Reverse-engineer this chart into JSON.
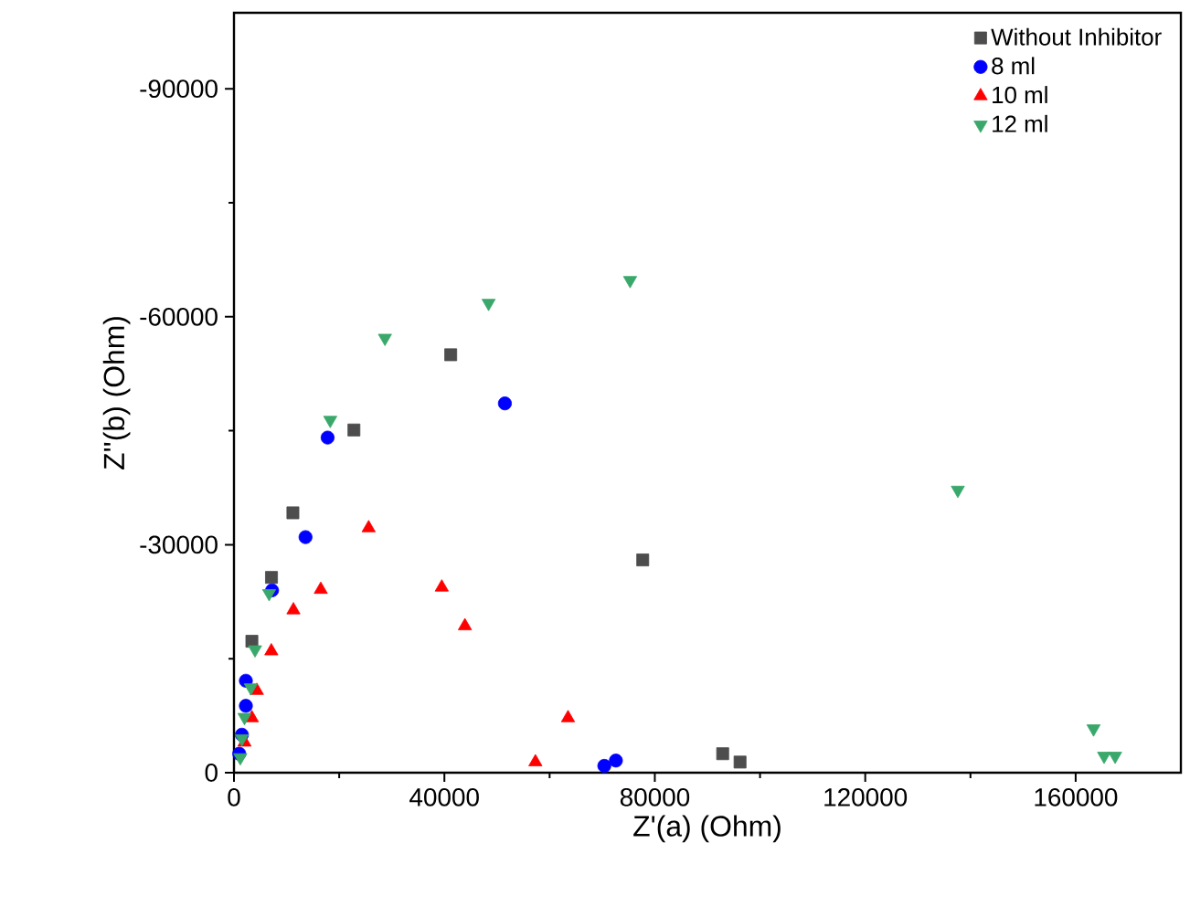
{
  "chart_data": {
    "type": "scatter",
    "xlabel": "Z'(a) (Ohm)",
    "ylabel": "Z''(b) (Ohm)",
    "xlim": [
      0,
      180000
    ],
    "ylim": [
      0,
      -100000
    ],
    "xticks": [
      0,
      40000,
      80000,
      120000,
      160000
    ],
    "yticks": [
      0,
      -30000,
      -60000,
      -90000
    ],
    "legend": "top right",
    "grid": false,
    "series": [
      {
        "name": "Without Inhibitor",
        "color": "#4d4d4d",
        "marker": "square",
        "x": [
          3400,
          7130,
          11200,
          22800,
          41200,
          77700,
          92900,
          96200
        ],
        "values": [
          -17300,
          -25700,
          -34200,
          -45100,
          -55000,
          -28000,
          -2500,
          -1400
        ]
      },
      {
        "name": "8 ml",
        "color": "#0000ff",
        "marker": "circle",
        "x": [
          1000,
          1500,
          2260,
          2260,
          7240,
          13600,
          17800,
          51500,
          72600,
          70400
        ],
        "values": [
          -2500,
          -5000,
          -8800,
          -12100,
          -24000,
          -31000,
          -44100,
          -48600,
          -1600,
          -900
        ]
      },
      {
        "name": "10 ml",
        "color": "#ff0000",
        "marker": "triangle",
        "x": [
          2000,
          3400,
          4350,
          7100,
          11300,
          16500,
          25600,
          39500,
          43900,
          63500,
          57300
        ],
        "values": [
          -4000,
          -7200,
          -10800,
          -16000,
          -21400,
          -24100,
          -32200,
          -24400,
          -19300,
          -7200,
          -1400
        ]
      },
      {
        "name": "12 ml",
        "color": "#3aa86b",
        "marker": "triangle down",
        "x": [
          1200,
          1500,
          2000,
          3200,
          4000,
          6680,
          18300,
          28700,
          48400,
          75300,
          137600,
          163400,
          165400,
          167500
        ],
        "values": [
          -2000,
          -4500,
          -7300,
          -11200,
          -16200,
          -23600,
          -46400,
          -57200,
          -61800,
          -64800,
          -37200,
          -5800,
          -2200,
          -2200
        ]
      }
    ]
  }
}
